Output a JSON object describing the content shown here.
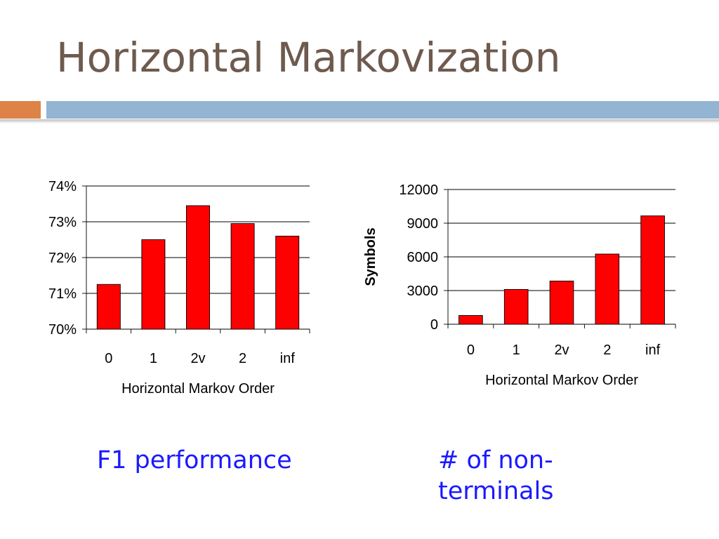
{
  "slide": {
    "title": "Horizontal Markovization",
    "captions": {
      "left": "F1 performance",
      "right": "# of non-terminals"
    },
    "colors": {
      "title": "#6e5a4e",
      "accent_orange": "#dd8347",
      "accent_blue": "#93b4d3",
      "caption": "#1a1aff",
      "bar_fill": "#ff0000"
    }
  },
  "chart_data": [
    {
      "type": "bar",
      "title": "",
      "xlabel": "Horizontal Markov Order",
      "ylabel": "",
      "categories": [
        "0",
        "1",
        "2v",
        "2",
        "inf"
      ],
      "values": [
        71.25,
        72.5,
        73.45,
        72.95,
        72.6
      ],
      "ylim": [
        70,
        74
      ],
      "yticks": [
        70,
        71,
        72,
        73,
        74
      ],
      "ytick_labels": [
        "70%",
        "71%",
        "72%",
        "73%",
        "74%"
      ],
      "grid": true,
      "legend": "none"
    },
    {
      "type": "bar",
      "title": "",
      "xlabel": "Horizontal Markov Order",
      "ylabel": "Symbols",
      "categories": [
        "0",
        "1",
        "2v",
        "2",
        "inf"
      ],
      "values": [
        780,
        3100,
        3850,
        6250,
        9650
      ],
      "ylim": [
        0,
        12000
      ],
      "yticks": [
        0,
        3000,
        6000,
        9000,
        12000
      ],
      "ytick_labels": [
        "0",
        "3000",
        "6000",
        "9000",
        "12000"
      ],
      "grid": true,
      "legend": "none"
    }
  ]
}
